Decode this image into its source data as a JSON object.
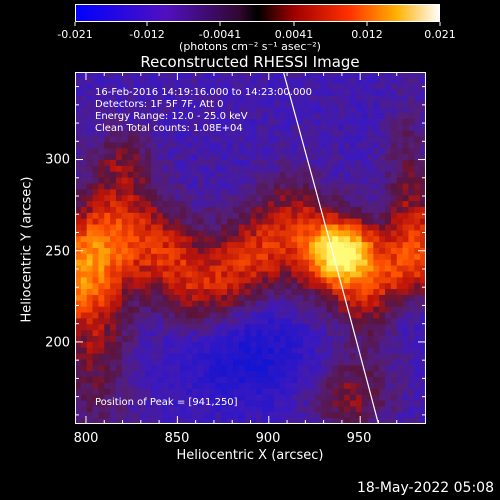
{
  "colorbar": {
    "tick_labels": [
      "-0.021",
      "-0.012",
      "-0.0041",
      "0.0041",
      "0.012",
      "0.021"
    ],
    "units": "(photons cm⁻² s⁻¹ asec⁻²)"
  },
  "annotations": {
    "time": "16-Feb-2016 14:19:16.000 to 14:23:00.000",
    "detectors": "Detectors: 1F 5F 7F, Att 0",
    "energy": "Energy Range: 12.0 - 25.0 keV",
    "clean": "Clean     Total counts: 1.08E+04",
    "peak": "Position of Peak = [941,250]"
  },
  "timestamp": "18-May-2022 05:08",
  "chart_data": {
    "type": "heatmap",
    "title": "Reconstructed RHESSI Image",
    "xlabel": "Heliocentric X (arcsec)",
    "ylabel": "Heliocentric Y (arcsec)",
    "xlim": [
      794,
      986
    ],
    "ylim": [
      155,
      348
    ],
    "xticks": [
      800,
      850,
      900,
      950
    ],
    "yticks": [
      200,
      250,
      300
    ],
    "zlim": [
      -0.021,
      0.021
    ],
    "peak": [
      941,
      250
    ],
    "limb_color": "#ffffff",
    "colors": {
      "cold": "#3a14c8",
      "neutral": "#5a1a7a",
      "warm": "#d02010",
      "hot": "#ff8a00",
      "peak": "#fff060"
    }
  }
}
